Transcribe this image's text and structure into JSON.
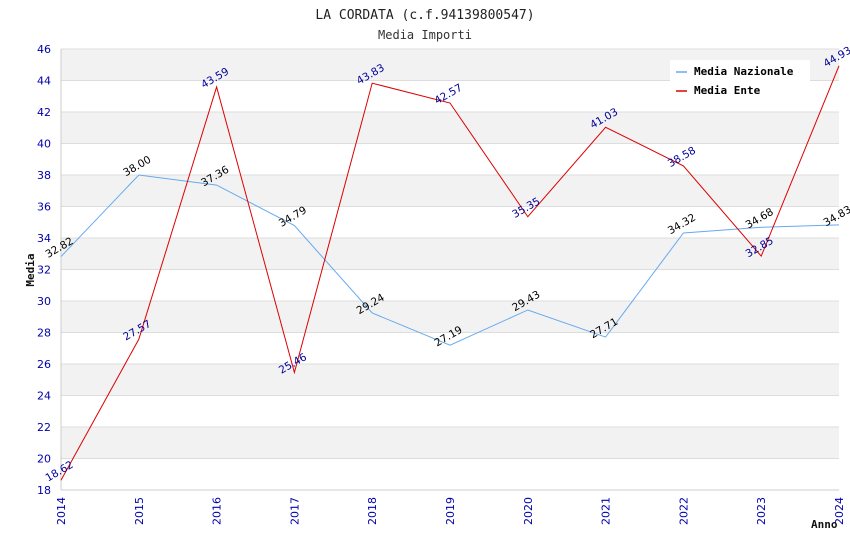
{
  "chart_data": {
    "type": "line",
    "title": "LA CORDATA (c.f.94139800547)",
    "subtitle": "Media Importi",
    "xlabel": "Anno",
    "ylabel": "Media",
    "categories": [
      "2014",
      "2015",
      "2016",
      "2017",
      "2018",
      "2019",
      "2020",
      "2021",
      "2022",
      "2023",
      "2024"
    ],
    "ylim": [
      18,
      46
    ],
    "yticks": [
      18,
      20,
      22,
      24,
      26,
      28,
      30,
      32,
      34,
      36,
      38,
      40,
      42,
      44,
      46
    ],
    "grid": "horizontal-bands",
    "legend_position": "top-right",
    "series": [
      {
        "name": "Media Nazionale",
        "color": "#66aaee",
        "label_color": "#000000",
        "values": [
          32.82,
          38.0,
          37.36,
          34.79,
          29.24,
          27.19,
          29.43,
          27.71,
          34.32,
          34.68,
          34.83
        ],
        "labels": [
          "32.82",
          "38.00",
          "37.36",
          "34.79",
          "29.24",
          "27.19",
          "29.43",
          "27.71",
          "34.32",
          "34.68",
          "34.83"
        ]
      },
      {
        "name": "Media Ente",
        "color": "#dd0000",
        "label_color": "#000099",
        "values": [
          18.62,
          27.57,
          43.59,
          25.46,
          43.83,
          42.57,
          35.35,
          41.03,
          38.58,
          32.85,
          44.93
        ],
        "labels": [
          "18.62",
          "27.57",
          "43.59",
          "25.46",
          "43.83",
          "42.57",
          "35.35",
          "41.03",
          "38.58",
          "32.85",
          "44.93"
        ]
      }
    ]
  }
}
